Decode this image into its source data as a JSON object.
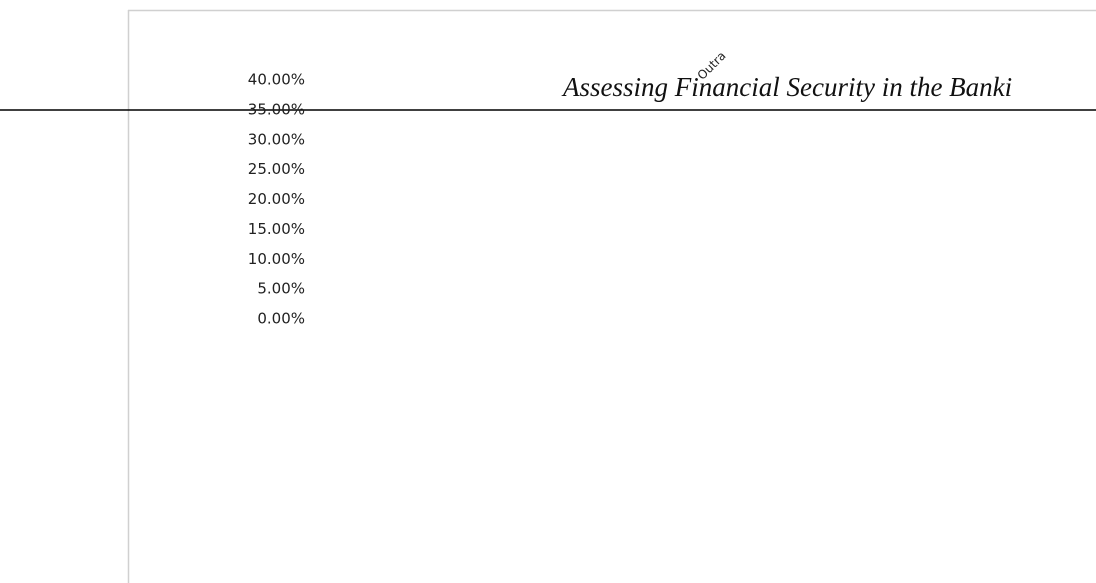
{
  "chart_data": {
    "type": "bar",
    "title": "Assessing Financial Security in the Banki",
    "categories": [
      "Outra"
    ],
    "ylim": [
      0,
      40
    ],
    "yticks": [
      {
        "value": 0,
        "label": "0.00%"
      },
      {
        "value": 5,
        "label": "5.00%"
      },
      {
        "value": 10,
        "label": "10.00%"
      },
      {
        "value": 15,
        "label": "15.00%"
      },
      {
        "value": 20,
        "label": "20.00%"
      },
      {
        "value": 25,
        "label": "25.00%"
      },
      {
        "value": 30,
        "label": "30.00%"
      },
      {
        "value": 35,
        "label": "35.00%"
      },
      {
        "value": 40,
        "label": "40.00%"
      }
    ]
  }
}
